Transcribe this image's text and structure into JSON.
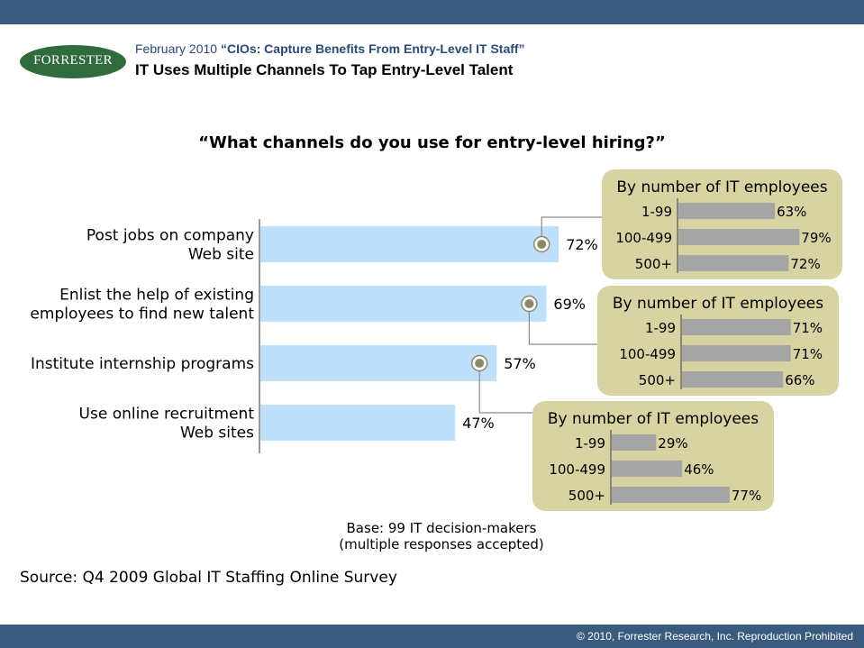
{
  "header": {
    "logo_text": "FORRESTER",
    "report_date": "February 2010",
    "report_title": "“CIOs: Capture Benefits From Entry-Level IT Staff”",
    "headline": "IT Uses Multiple Channels To Tap Entry-Level Talent"
  },
  "footer": {
    "copyright": "© 2010, Forrester Research, Inc. Reproduction Prohibited",
    "base_line1": "Base: 99 IT decision-makers",
    "base_line2": "(multiple responses accepted)",
    "source": "Source: Q4 2009 Global IT Staffing Online Survey"
  },
  "colors": {
    "bar_main": "#bfe0fa",
    "bar_sub": "#a5a5a5",
    "panel": "#d8d3a3",
    "marker": "#8a8a6a",
    "brand_bar": "#3b5b7e",
    "logo": "#2f6b3c"
  },
  "chart_data": {
    "type": "bar",
    "title": "“What channels do you use for entry-level hiring?”",
    "orientation": "horizontal",
    "unit": "%",
    "categories": [
      [
        "Post jobs on company",
        "Web site"
      ],
      [
        "Enlist the help of existing",
        "employees to find new talent"
      ],
      [
        "Institute internship programs"
      ],
      [
        "Use online recruitment",
        "Web sites"
      ]
    ],
    "values": [
      72,
      69,
      57,
      47
    ],
    "value_labels": [
      "72%",
      "69%",
      "57%",
      "47%"
    ],
    "breakdowns": [
      {
        "title": "By number of IT employees",
        "for_category_index": 0,
        "categories": [
          "1-99",
          "100-499",
          "500+"
        ],
        "values": [
          63,
          79,
          72
        ],
        "value_labels": [
          "63%",
          "79%",
          "72%"
        ]
      },
      {
        "title": "By number of IT employees",
        "for_category_index": 1,
        "categories": [
          "1-99",
          "100-499",
          "500+"
        ],
        "values": [
          71,
          71,
          66
        ],
        "value_labels": [
          "71%",
          "71%",
          "66%"
        ]
      },
      {
        "title": "By number of IT employees",
        "for_category_index": 2,
        "categories": [
          "1-99",
          "100-499",
          "500+"
        ],
        "values": [
          29,
          46,
          77
        ],
        "value_labels": [
          "29%",
          "46%",
          "77%"
        ]
      }
    ]
  }
}
